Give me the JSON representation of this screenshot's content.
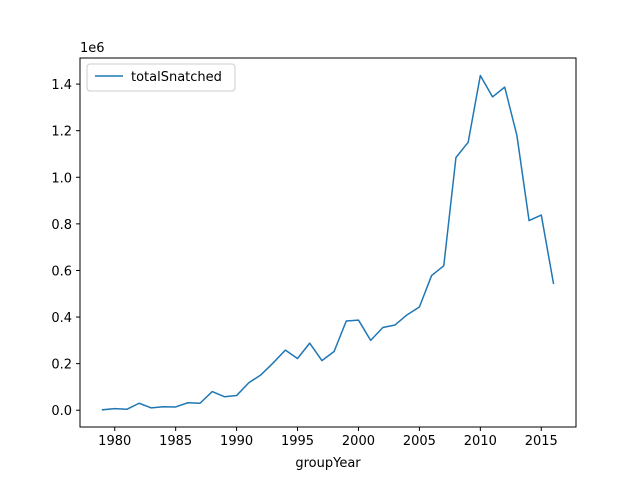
{
  "chart_data": {
    "type": "line",
    "xlabel": "groupYear",
    "ylabel": "",
    "y_scale_label": "1e6",
    "xlim": [
      1977.15,
      2017.85
    ],
    "ylim": [
      -0.072,
      1.512
    ],
    "x_ticks": [
      1980,
      1985,
      1990,
      1995,
      2000,
      2005,
      2010,
      2015
    ],
    "x_tick_labels": [
      "1980",
      "1985",
      "1990",
      "1995",
      "2000",
      "2005",
      "2010",
      "2015"
    ],
    "y_ticks": [
      0.0,
      0.2,
      0.4,
      0.6,
      0.8,
      1.0,
      1.2,
      1.4
    ],
    "y_tick_labels": [
      "0.0",
      "0.2",
      "0.4",
      "0.6",
      "0.8",
      "1.0",
      "1.2",
      "1.4"
    ],
    "grid": false,
    "legend_position": "top-left",
    "x": [
      1979,
      1980,
      1981,
      1982,
      1983,
      1984,
      1985,
      1986,
      1987,
      1988,
      1989,
      1990,
      1991,
      1992,
      1993,
      1994,
      1995,
      1996,
      1997,
      1998,
      1999,
      2000,
      2001,
      2002,
      2003,
      2004,
      2005,
      2006,
      2007,
      2008,
      2009,
      2010,
      2011,
      2012,
      2013,
      2014,
      2015,
      2016
    ],
    "series": [
      {
        "name": "totalSnatched",
        "color": "#1f77b4",
        "values": [
          0.002,
          0.007,
          0.004,
          0.03,
          0.01,
          0.015,
          0.014,
          0.032,
          0.03,
          0.08,
          0.058,
          0.063,
          0.118,
          0.152,
          0.203,
          0.258,
          0.222,
          0.288,
          0.213,
          0.252,
          0.383,
          0.387,
          0.3,
          0.355,
          0.366,
          0.41,
          0.443,
          0.578,
          0.62,
          1.085,
          1.15,
          1.437,
          1.345,
          1.387,
          1.18,
          0.814,
          0.838,
          0.545
        ]
      }
    ]
  }
}
